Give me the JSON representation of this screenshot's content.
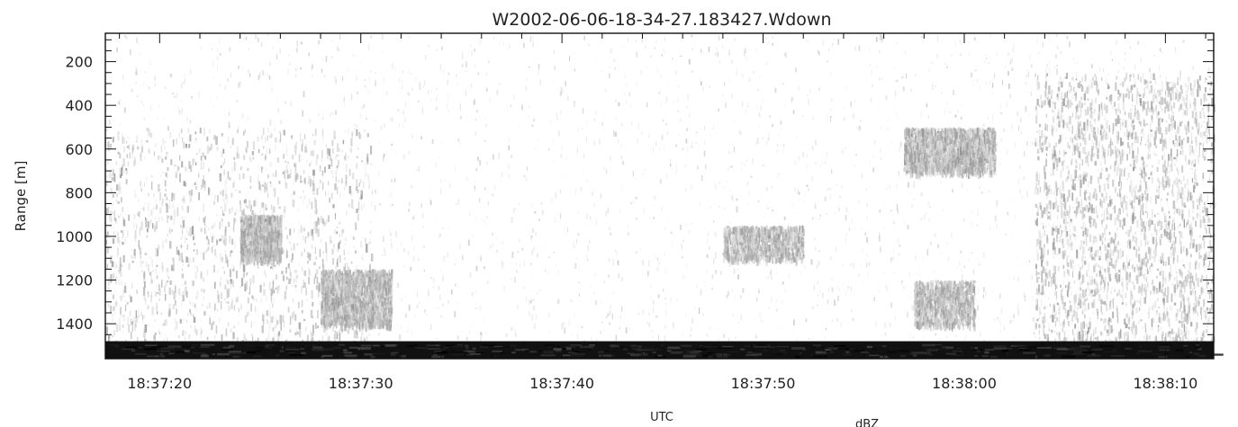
{
  "chart_data": {
    "type": "heatmap",
    "title": "W2002-06-06-18-34-27.183427.Wdown",
    "xlabel": "UTC",
    "ylabel": "Range  [m]",
    "colorbar_label": "dBZ",
    "x_tick_labels": [
      "18:37:20",
      "18:37:30",
      "18:37:40",
      "18:37:50",
      "18:38:00",
      "18:38:10"
    ],
    "x_tick_seconds": [
      20,
      30,
      40,
      50,
      60,
      70
    ],
    "xlim_seconds": [
      17.3,
      72.4
    ],
    "y_tick_labels": [
      "200",
      "400",
      "600",
      "800",
      "1000",
      "1200",
      "1400"
    ],
    "y_tick_values": [
      200,
      400,
      600,
      800,
      1000,
      1200,
      1400
    ],
    "ylim": [
      1560,
      70
    ],
    "y_inverted": true,
    "colormap": "grayscale",
    "background_color": "#ffffff",
    "echo_color": "#a0a0a0",
    "surface_color": "#111111",
    "surface_range_m": [
      1480,
      1560
    ],
    "echo_regions": [
      {
        "t_start": 17.3,
        "t_end": 30.5,
        "range_start": 500,
        "range_end": 1480,
        "density": "moderate"
      },
      {
        "t_start": 28.0,
        "t_end": 31.5,
        "range_start": 1150,
        "range_end": 1400,
        "density": "high"
      },
      {
        "t_start": 24.0,
        "t_end": 26.0,
        "range_start": 900,
        "range_end": 1100,
        "density": "high"
      },
      {
        "t_start": 48.0,
        "t_end": 52.0,
        "range_start": 950,
        "range_end": 1100,
        "density": "moderate"
      },
      {
        "t_start": 57.0,
        "t_end": 61.5,
        "range_start": 500,
        "range_end": 700,
        "density": "high"
      },
      {
        "t_start": 57.5,
        "t_end": 60.5,
        "range_start": 1200,
        "range_end": 1400,
        "density": "moderate"
      },
      {
        "t_start": 63.5,
        "t_end": 72.4,
        "range_start": 250,
        "range_end": 1480,
        "density": "high"
      }
    ]
  }
}
